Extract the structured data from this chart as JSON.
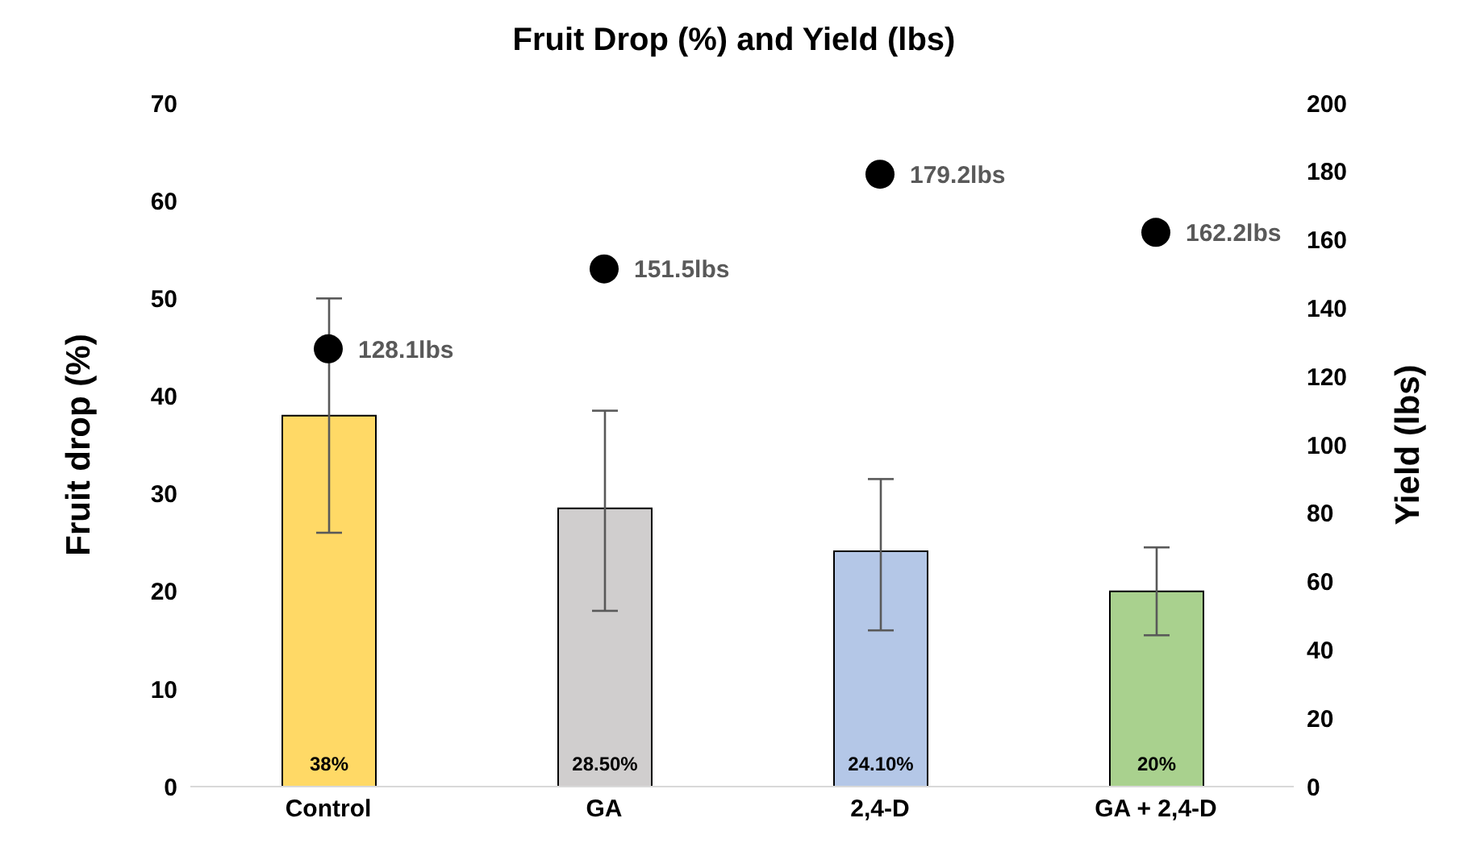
{
  "chart_data": {
    "type": "bar",
    "title": "Fruit Drop (%) and Yield (lbs)",
    "ylabel": "Fruit drop (%)",
    "y2label": "Yield (lbs)",
    "categories": [
      "Control",
      "GA",
      "2,4-D",
      "GA + 2,4-D"
    ],
    "series": [
      {
        "colors": [
          "#ffd966",
          "#d0cece",
          "#b4c7e7",
          "#a9d18e"
        ],
        "values": [
          38,
          28.5,
          24.1,
          20
        ],
        "errors": [
          [
            26,
            50
          ],
          [
            18,
            38.5
          ],
          [
            16,
            31.5
          ],
          [
            15.5,
            24.5
          ]
        ],
        "value_labels": [
          "38%",
          "28.50%",
          "24.10%",
          "20%"
        ]
      },
      {
        "type": "scatter",
        "axis": "y2",
        "color": "#000000",
        "values": [
          128.1,
          151.5,
          179.2,
          162.2
        ],
        "value_labels": [
          "128.1lbs",
          "151.5lbs",
          "179.2lbs",
          "162.2lbs"
        ]
      }
    ],
    "ylim": [
      0,
      70
    ],
    "yticks": [
      0,
      10,
      20,
      30,
      40,
      50,
      60,
      70
    ],
    "y2lim": [
      0,
      200
    ],
    "y2ticks": [
      0,
      20,
      40,
      60,
      80,
      100,
      120,
      140,
      160,
      180,
      200
    ],
    "marker": "circle"
  }
}
